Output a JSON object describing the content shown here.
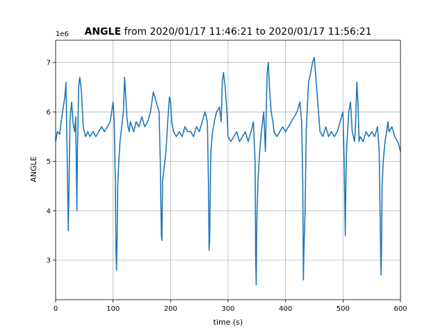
{
  "chart_data": {
    "type": "line",
    "title_bold": "ANGLE",
    "title_rest": " from 2020/01/17 11:46:21 to 2020/01/17 11:56:21",
    "offset_text": "1e6",
    "xlabel": "time (s)",
    "ylabel": "ANGLE",
    "xlim": [
      0,
      600
    ],
    "ylim": [
      2.2,
      7.45
    ],
    "xticks": [
      0,
      100,
      200,
      300,
      400,
      500,
      600
    ],
    "yticks": [
      3,
      4,
      5,
      6,
      7
    ],
    "grid": true,
    "line_color": "#1f77b4",
    "series": [
      {
        "x": [
          0,
          3,
          7,
          12,
          16,
          18,
          20,
          22,
          24,
          25,
          26,
          28,
          30,
          33,
          35,
          37,
          38,
          40,
          42,
          45,
          48,
          52,
          56,
          60,
          65,
          70,
          75,
          80,
          85,
          90,
          95,
          100,
          102,
          104,
          105,
          106,
          107,
          108,
          110,
          112,
          115,
          118,
          120,
          122,
          124,
          126,
          128,
          130,
          133,
          136,
          140,
          145,
          150,
          155,
          160,
          165,
          170,
          175,
          180,
          182,
          184,
          185,
          186,
          188,
          190,
          192,
          195,
          198,
          200,
          202,
          205,
          210,
          215,
          220,
          225,
          230,
          235,
          240,
          245,
          250,
          255,
          260,
          264,
          266,
          267,
          268,
          270,
          273,
          276,
          280,
          285,
          288,
          290,
          292,
          295,
          298,
          300,
          305,
          310,
          315,
          320,
          325,
          330,
          335,
          340,
          344,
          347,
          348,
          349,
          350,
          352,
          355,
          358,
          362,
          365,
          368,
          370,
          372,
          375,
          378,
          380,
          385,
          390,
          395,
          400,
          405,
          410,
          415,
          420,
          425,
          428,
          430,
          431,
          432,
          434,
          436,
          440,
          444,
          447,
          450,
          452,
          454,
          456,
          458,
          460,
          465,
          470,
          475,
          480,
          485,
          490,
          495,
          500,
          502,
          504,
          505,
          506,
          508,
          510,
          513,
          516,
          520,
          522,
          524,
          526,
          528,
          530,
          535,
          540,
          545,
          550,
          555,
          560,
          563,
          565,
          566,
          567,
          568,
          570,
          573,
          576,
          578,
          580,
          585,
          590,
          595,
          598,
          600
        ],
        "y": [
          5.4,
          5.6,
          5.55,
          6.0,
          6.3,
          6.6,
          5.2,
          3.6,
          5.0,
          5.8,
          6.0,
          6.2,
          5.8,
          5.6,
          5.9,
          4.0,
          5.2,
          6.5,
          6.7,
          6.4,
          5.7,
          5.5,
          5.6,
          5.5,
          5.6,
          5.5,
          5.6,
          5.7,
          5.6,
          5.7,
          5.8,
          6.2,
          5.8,
          4.5,
          3.2,
          2.8,
          3.5,
          4.5,
          5.0,
          5.4,
          5.7,
          6.0,
          6.7,
          6.3,
          5.9,
          5.7,
          5.6,
          5.8,
          5.7,
          5.6,
          5.8,
          5.7,
          5.9,
          5.7,
          5.8,
          6.0,
          6.4,
          6.2,
          6.0,
          5.0,
          3.5,
          3.4,
          4.6,
          4.8,
          5.0,
          5.2,
          5.8,
          6.3,
          6.2,
          5.8,
          5.6,
          5.5,
          5.6,
          5.5,
          5.7,
          5.6,
          5.6,
          5.5,
          5.7,
          5.6,
          5.8,
          6.0,
          5.8,
          4.5,
          3.2,
          3.4,
          5.2,
          5.6,
          5.8,
          6.0,
          6.1,
          5.8,
          6.6,
          6.8,
          6.5,
          6.0,
          5.5,
          5.4,
          5.5,
          5.6,
          5.4,
          5.5,
          5.6,
          5.4,
          5.6,
          5.8,
          5.0,
          3.0,
          2.5,
          3.8,
          4.6,
          5.2,
          5.6,
          6.0,
          5.2,
          6.8,
          7.0,
          6.5,
          6.0,
          5.8,
          5.6,
          5.5,
          5.6,
          5.7,
          5.6,
          5.7,
          5.8,
          5.9,
          6.0,
          6.2,
          5.8,
          4.5,
          2.6,
          3.2,
          4.0,
          5.6,
          6.6,
          6.8,
          7.0,
          7.1,
          6.8,
          6.5,
          6.2,
          5.9,
          5.6,
          5.5,
          5.7,
          5.5,
          5.6,
          5.5,
          5.6,
          5.8,
          6.0,
          5.0,
          3.5,
          4.6,
          5.2,
          5.6,
          6.0,
          6.2,
          5.6,
          5.4,
          5.8,
          6.6,
          6.2,
          5.4,
          5.5,
          5.4,
          5.6,
          5.5,
          5.6,
          5.5,
          5.7,
          5.2,
          3.5,
          2.7,
          3.2,
          4.5,
          5.0,
          5.4,
          5.6,
          5.8,
          5.6,
          5.7,
          5.5,
          5.4,
          5.3,
          5.2
        ]
      }
    ]
  }
}
